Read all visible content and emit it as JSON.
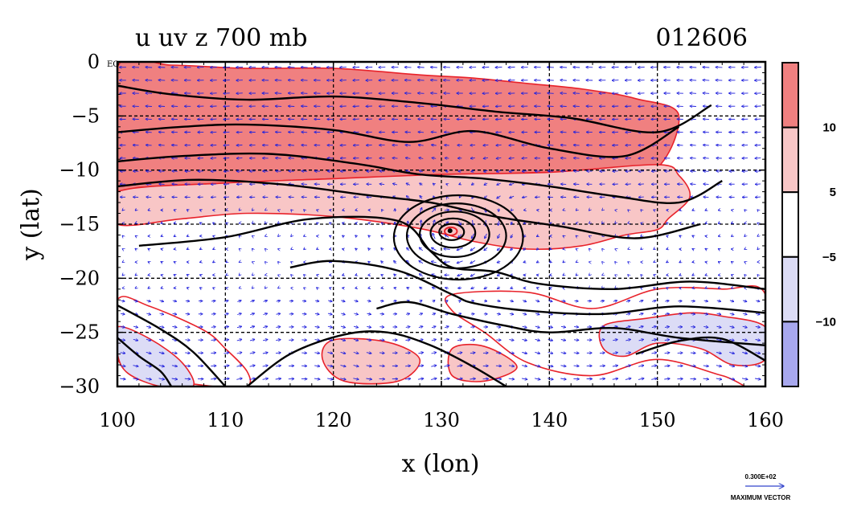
{
  "chart_data": {
    "type": "heatmap",
    "title": "u uv z 700 mb",
    "date_label": "012606",
    "xlabel": "x (lon)",
    "ylabel": "y (lat)",
    "xlim": [
      100,
      160
    ],
    "ylim": [
      -30,
      0
    ],
    "x_ticks": [
      100,
      110,
      120,
      130,
      140,
      150,
      160
    ],
    "x_tick_labels": [
      "100",
      "110",
      "120",
      "130",
      "140",
      "150",
      "160"
    ],
    "y_ticks": [
      0,
      -5,
      -10,
      -15,
      -20,
      -25,
      -30
    ],
    "y_tick_labels": [
      "0",
      "−5",
      "−10",
      "−15",
      "−20",
      "−25",
      "−30"
    ],
    "equator_label": "EQ",
    "grid": true,
    "colorbar": {
      "levels_labels": [
        "10",
        "5",
        "−5",
        "−10"
      ],
      "bins": [
        {
          "range": [
            10,
            20
          ],
          "color": "#f08080"
        },
        {
          "range": [
            5,
            10
          ],
          "color": "#f8c6c6"
        },
        {
          "range": [
            -5,
            5
          ],
          "color": "#ffffff"
        },
        {
          "range": [
            -10,
            -5
          ],
          "color": "#dcdcf6"
        },
        {
          "range": [
            -20,
            -10
          ],
          "color": "#a8a8ee"
        }
      ]
    },
    "u_regions": [
      {
        "level": "10",
        "lon": [
          100,
          105,
          112,
          120,
          128,
          133,
          138,
          143,
          148,
          152,
          149,
          140,
          130,
          120,
          110,
          102,
          100
        ],
        "lat": [
          -0.5,
          -0.3,
          -0.6,
          -0.6,
          -1.2,
          -1.5,
          -2.0,
          -2.5,
          -3.4,
          -5.0,
          -10.5,
          -10.2,
          -10.6,
          -10.8,
          -11.2,
          -11.6,
          -12.0
        ]
      },
      {
        "level": "5",
        "lon": [
          100,
          110,
          120,
          130,
          140,
          150,
          152,
          153,
          151,
          150,
          147,
          143,
          138,
          133,
          128,
          120,
          112,
          106,
          100
        ],
        "lat": [
          -12.0,
          -11.2,
          -10.8,
          -10.4,
          -10.2,
          -9.5,
          -10.5,
          -12.5,
          -14.5,
          -15.5,
          -16.0,
          -17.0,
          -17.3,
          -16.6,
          -15.4,
          -14.3,
          -14.0,
          -14.5,
          -15.0
        ]
      },
      {
        "level": "5",
        "lon": [
          120,
          125,
          128,
          126,
          121,
          119
        ],
        "lat": [
          -25.7,
          -25.9,
          -27.5,
          -29.5,
          -29.5,
          -27.5
        ]
      },
      {
        "level": "5",
        "lon": [
          131,
          134,
          137,
          134,
          131
        ],
        "lat": [
          -26.5,
          -26.3,
          -28.2,
          -29.5,
          -29.0
        ]
      },
      {
        "level": "-5",
        "lon": [
          100,
          103,
          108,
          110,
          112,
          112,
          109,
          104,
          100
        ],
        "lat": [
          -22.0,
          -22.6,
          -24.8,
          -26.5,
          -28.6,
          -30.0,
          -30.0,
          -29.2,
          -27.5
        ]
      },
      {
        "level": "-10",
        "lon": [
          100,
          103,
          106,
          107,
          104,
          101,
          100
        ],
        "lat": [
          -24.5,
          -25.6,
          -27.8,
          -30.0,
          -30.0,
          -28.8,
          -27.0
        ]
      },
      {
        "level": "-5",
        "lon": [
          131,
          138,
          144,
          150,
          156,
          160,
          160,
          156,
          150,
          144,
          138,
          134,
          131
        ],
        "lat": [
          -21.5,
          -21.3,
          -22.8,
          -21.0,
          -21.0,
          -21.5,
          -30.0,
          -29.0,
          -27.5,
          -29.0,
          -27.8,
          -25.0,
          -23.0
        ]
      },
      {
        "level": "-10",
        "lon": [
          145,
          149,
          153,
          156,
          160,
          160,
          157,
          154,
          150,
          147,
          145
        ],
        "lat": [
          -24.4,
          -23.7,
          -23.2,
          -23.5,
          -24.5,
          -27.5,
          -28.0,
          -26.5,
          -26.0,
          -27.2,
          -26.5
        ]
      }
    ],
    "height_contours": [
      {
        "lon": [
          100,
          105,
          112,
          120,
          128,
          135,
          142,
          150,
          155
        ],
        "lat": [
          -2.2,
          -3.0,
          -3.5,
          -3.2,
          -3.8,
          -4.6,
          -5.2,
          -6.5,
          -4.0
        ]
      },
      {
        "lon": [
          100,
          106,
          112,
          120,
          127,
          133,
          140,
          147,
          152
        ],
        "lat": [
          -6.5,
          -6.0,
          -5.8,
          -6.3,
          -7.4,
          -6.4,
          -8.0,
          -8.7,
          -6.0
        ]
      },
      {
        "lon": [
          100,
          106,
          114,
          122,
          128,
          134,
          140,
          146,
          152,
          156
        ],
        "lat": [
          -9.2,
          -8.7,
          -8.5,
          -9.4,
          -10.4,
          -10.8,
          -11.5,
          -12.4,
          -13.0,
          -11.0
        ]
      },
      {
        "lon": [
          100,
          107,
          115,
          123,
          129,
          135,
          141,
          148,
          154
        ],
        "lat": [
          -11.5,
          -10.9,
          -11.3,
          -12.3,
          -13.0,
          -14.3,
          -15.2,
          -16.3,
          -15.0
        ]
      },
      {
        "lon": [
          102,
          110,
          118,
          126,
          129,
          131,
          135,
          139,
          146,
          153,
          160
        ],
        "lat": [
          -17.0,
          -16.2,
          -14.5,
          -14.7,
          -17.5,
          -19.0,
          -19.4,
          -20.5,
          -21.0,
          -20.3,
          -21.0
        ]
      },
      {
        "lon": [
          116,
          120,
          126,
          131,
          133,
          138,
          145,
          152,
          160
        ],
        "lat": [
          -19.0,
          -18.4,
          -19.3,
          -21.5,
          -22.3,
          -23.0,
          -23.3,
          -22.6,
          -23.2
        ]
      },
      {
        "lon": [
          124,
          127,
          131,
          136,
          140,
          146,
          152,
          160
        ],
        "lat": [
          -22.8,
          -22.2,
          -23.3,
          -24.4,
          -25.0,
          -24.6,
          -25.5,
          -26.2
        ]
      },
      {
        "lon": [
          112,
          116,
          121,
          125,
          129,
          133,
          136
        ],
        "lat": [
          -30.0,
          -27.0,
          -25.2,
          -25.0,
          -26.2,
          -28.2,
          -30.0
        ]
      },
      {
        "lon": [
          100,
          104,
          107,
          110
        ],
        "lat": [
          -22.5,
          -24.7,
          -26.8,
          -30.0
        ]
      },
      {
        "lon": [
          100,
          102,
          104,
          105
        ],
        "lat": [
          -25.5,
          -27.2,
          -28.6,
          -30.0
        ]
      },
      {
        "lon": [
          148,
          152,
          156,
          160
        ],
        "lat": [
          -27.0,
          -25.8,
          -25.6,
          -27.6
        ]
      }
    ],
    "low_center": {
      "lon": 130.8,
      "lat": -15.6
    },
    "low_rings_deg": [
      0.5,
      1.0,
      1.8,
      2.8,
      4.0,
      5.2
    ],
    "vector_reference": {
      "value": "0.300E+02",
      "label": "MAXIMUM VECTOR"
    }
  }
}
